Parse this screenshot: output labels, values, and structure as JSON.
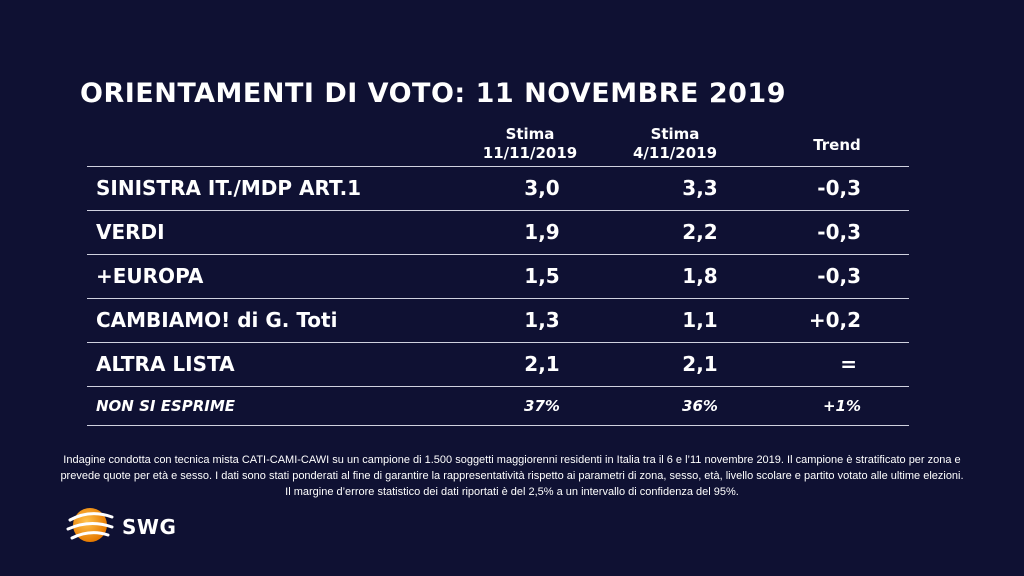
{
  "title": "ORIENTAMENTI DI VOTO: 11 NOVEMBRE 2019",
  "columns": [
    {
      "line1": "Stima",
      "line2": "11/11/2019"
    },
    {
      "line1": "Stima",
      "line2": "4/11/2019"
    },
    {
      "line1": "Trend",
      "line2": ""
    }
  ],
  "rows": [
    {
      "name": "SINISTRA IT./MDP ART.1",
      "v1": "3,0",
      "v2": "3,3",
      "trend": "-0,3"
    },
    {
      "name": "VERDI",
      "v1": "1,9",
      "v2": "2,2",
      "trend": "-0,3"
    },
    {
      "name": "+EUROPA",
      "v1": "1,5",
      "v2": "1,8",
      "trend": "-0,3"
    },
    {
      "name": "CAMBIAMO! di G. Toti",
      "v1": "1,3",
      "v2": "1,1",
      "trend": "+0,2"
    },
    {
      "name": "ALTRA LISTA",
      "v1": "2,1",
      "v2": "2,1",
      "trend": "="
    },
    {
      "name": "NON SI ESPRIME",
      "v1": "37%",
      "v2": "36%",
      "trend": "+1%"
    }
  ],
  "footnote": "Indagine condotta con tecnica mista CATI-CAMI-CAWI su un campione di 1.500 soggetti maggiorenni residenti in Italia tra il 6 e l’11 novembre 2019. Il campione è stratificato per zona e prevede quote per età e sesso. I dati sono stati ponderati al fine di garantire la rappresentatività rispetto ai parametri di zona, sesso, età, livello scolare e partito votato alle ultime elezioni. Il margine d’errore statistico dei dati riportati è del 2,5% a un intervallo di confidenza del 95%.",
  "logo": {
    "text": "SWG",
    "icon": "swg-globe-icon",
    "color": "#f39200"
  }
}
